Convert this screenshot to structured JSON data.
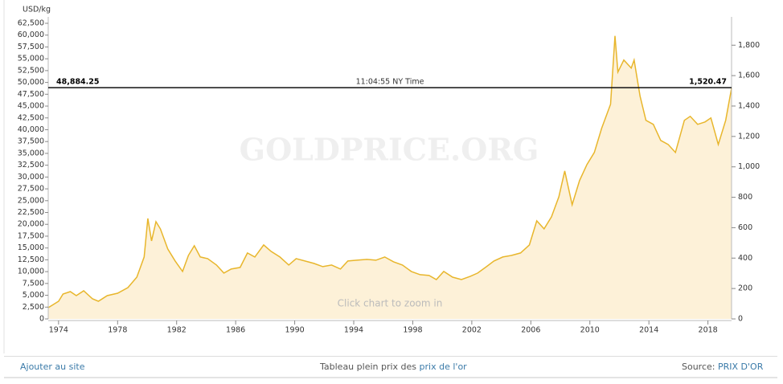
{
  "chart_data": {
    "type": "area",
    "y_label": "USD/kg",
    "watermark": "GOLDPRICE.ORG",
    "hint": "Click chart to zoom in",
    "current": {
      "value": 48884.25,
      "label": "48,884.25"
    },
    "current_time": "11:04:55 NY Time",
    "current_oz": {
      "value": 1520.47,
      "label": "1,520.47"
    },
    "color": "#e8b62c",
    "fill_color": "#fdf1d8",
    "x": [
      1973.3,
      1974.0,
      1974.3,
      1974.8,
      1975.2,
      1975.7,
      1976.3,
      1976.7,
      1977.3,
      1978.0,
      1978.7,
      1979.3,
      1979.8,
      1980.05,
      1980.3,
      1980.6,
      1980.9,
      1981.4,
      1981.9,
      1982.4,
      1982.8,
      1983.2,
      1983.6,
      1984.1,
      1984.7,
      1985.2,
      1985.7,
      1986.3,
      1986.8,
      1987.3,
      1987.9,
      1988.4,
      1989.0,
      1989.6,
      1990.1,
      1990.7,
      1991.3,
      1991.9,
      1992.5,
      1993.1,
      1993.6,
      1994.2,
      1994.9,
      1995.5,
      1996.1,
      1996.7,
      1997.3,
      1997.9,
      1998.5,
      1999.1,
      1999.6,
      2000.1,
      2000.7,
      2001.3,
      2001.9,
      2002.4,
      2003.0,
      2003.5,
      2004.1,
      2004.7,
      2005.3,
      2005.9,
      2006.4,
      2006.9,
      2007.4,
      2007.9,
      2008.3,
      2008.8,
      2009.3,
      2009.8,
      2010.3,
      2010.8,
      2011.4,
      2011.7,
      2011.9,
      2012.3,
      2012.8,
      2013.0,
      2013.4,
      2013.8,
      2014.3,
      2014.8,
      2015.3,
      2015.8,
      2016.4,
      2016.8,
      2017.3,
      2017.8,
      2018.2,
      2018.7,
      2019.2,
      2019.6
    ],
    "values": [
      2380,
      3740,
      5270,
      5780,
      4930,
      5950,
      4250,
      3740,
      4930,
      5440,
      6630,
      8840,
      13090,
      21250,
      16490,
      20570,
      19040,
      14790,
      12240,
      10030,
      13430,
      15470,
      13090,
      12750,
      11390,
      9690,
      10540,
      10880,
      13940,
      13090,
      15640,
      14280,
      13090,
      11390,
      12750,
      12240,
      11730,
      11050,
      11390,
      10540,
      12240,
      12410,
      12580,
      12410,
      13090,
      12070,
      11390,
      10030,
      9350,
      9180,
      8330,
      10030,
      8840,
      8330,
      9010,
      9690,
      11050,
      12240,
      13090,
      13430,
      13940,
      15640,
      20740,
      19040,
      21590,
      25840,
      31280,
      24140,
      29240,
      32640,
      35190,
      40290,
      45390,
      59840,
      52190,
      54740,
      53040,
      54740,
      47090,
      41990,
      41140,
      37740,
      36890,
      35190,
      41990,
      42840,
      41140,
      41650,
      42500,
      36890,
      41990,
      48790
    ],
    "xlim": [
      1973.3,
      2019.6
    ],
    "xticks": [
      1974,
      1978,
      1982,
      1986,
      1990,
      1994,
      1998,
      2002,
      2006,
      2010,
      2014,
      2018
    ],
    "ylim": [
      0,
      62500
    ],
    "yticks": [
      0,
      {
        "value": 2500,
        "label": "2,500"
      },
      {
        "value": 5000,
        "label": "5,000"
      },
      {
        "value": 7500,
        "label": "7,500"
      },
      {
        "value": 10000,
        "label": "10,000"
      },
      {
        "value": 12500,
        "label": "12,500"
      },
      {
        "value": 15000,
        "label": "15,000"
      },
      {
        "value": 17500,
        "label": "17,500"
      },
      {
        "value": 20000,
        "label": "20,000"
      },
      {
        "value": 22500,
        "label": "22,500"
      },
      {
        "value": 25000,
        "label": "25,000"
      },
      {
        "value": 27500,
        "label": "27,500"
      },
      {
        "value": 30000,
        "label": "30,000"
      },
      {
        "value": 32500,
        "label": "32,500"
      },
      {
        "value": 35000,
        "label": "35,000"
      },
      {
        "value": 37500,
        "label": "37,500"
      },
      {
        "value": 40000,
        "label": "40,000"
      },
      {
        "value": 42500,
        "label": "42,500"
      },
      {
        "value": 45000,
        "label": "45,000"
      },
      {
        "value": 47500,
        "label": "47,500"
      },
      {
        "value": 50000,
        "label": "50,000"
      },
      {
        "value": 52500,
        "label": "52,500"
      },
      {
        "value": 55000,
        "label": "55,000"
      },
      {
        "value": 57500,
        "label": "57,500"
      },
      {
        "value": 60000,
        "label": "60,000"
      },
      {
        "value": 62500,
        "label": "62,500"
      }
    ],
    "y2lim": [
      0,
      1944
    ],
    "y2ticks": [
      0,
      200,
      400,
      600,
      800,
      {
        "value": 1000,
        "label": "1,000"
      },
      {
        "value": 1200,
        "label": "1,200"
      },
      {
        "value": 1400,
        "label": "1,400"
      },
      {
        "value": 1600,
        "label": "1,600"
      },
      {
        "value": 1800,
        "label": "1,800"
      }
    ]
  },
  "footer": {
    "left": "Ajouter au site",
    "middle": "Tableau plein prix des",
    "middle_link": "prix de l'or",
    "right": "Source:",
    "right_link": "PRIX D'OR"
  }
}
